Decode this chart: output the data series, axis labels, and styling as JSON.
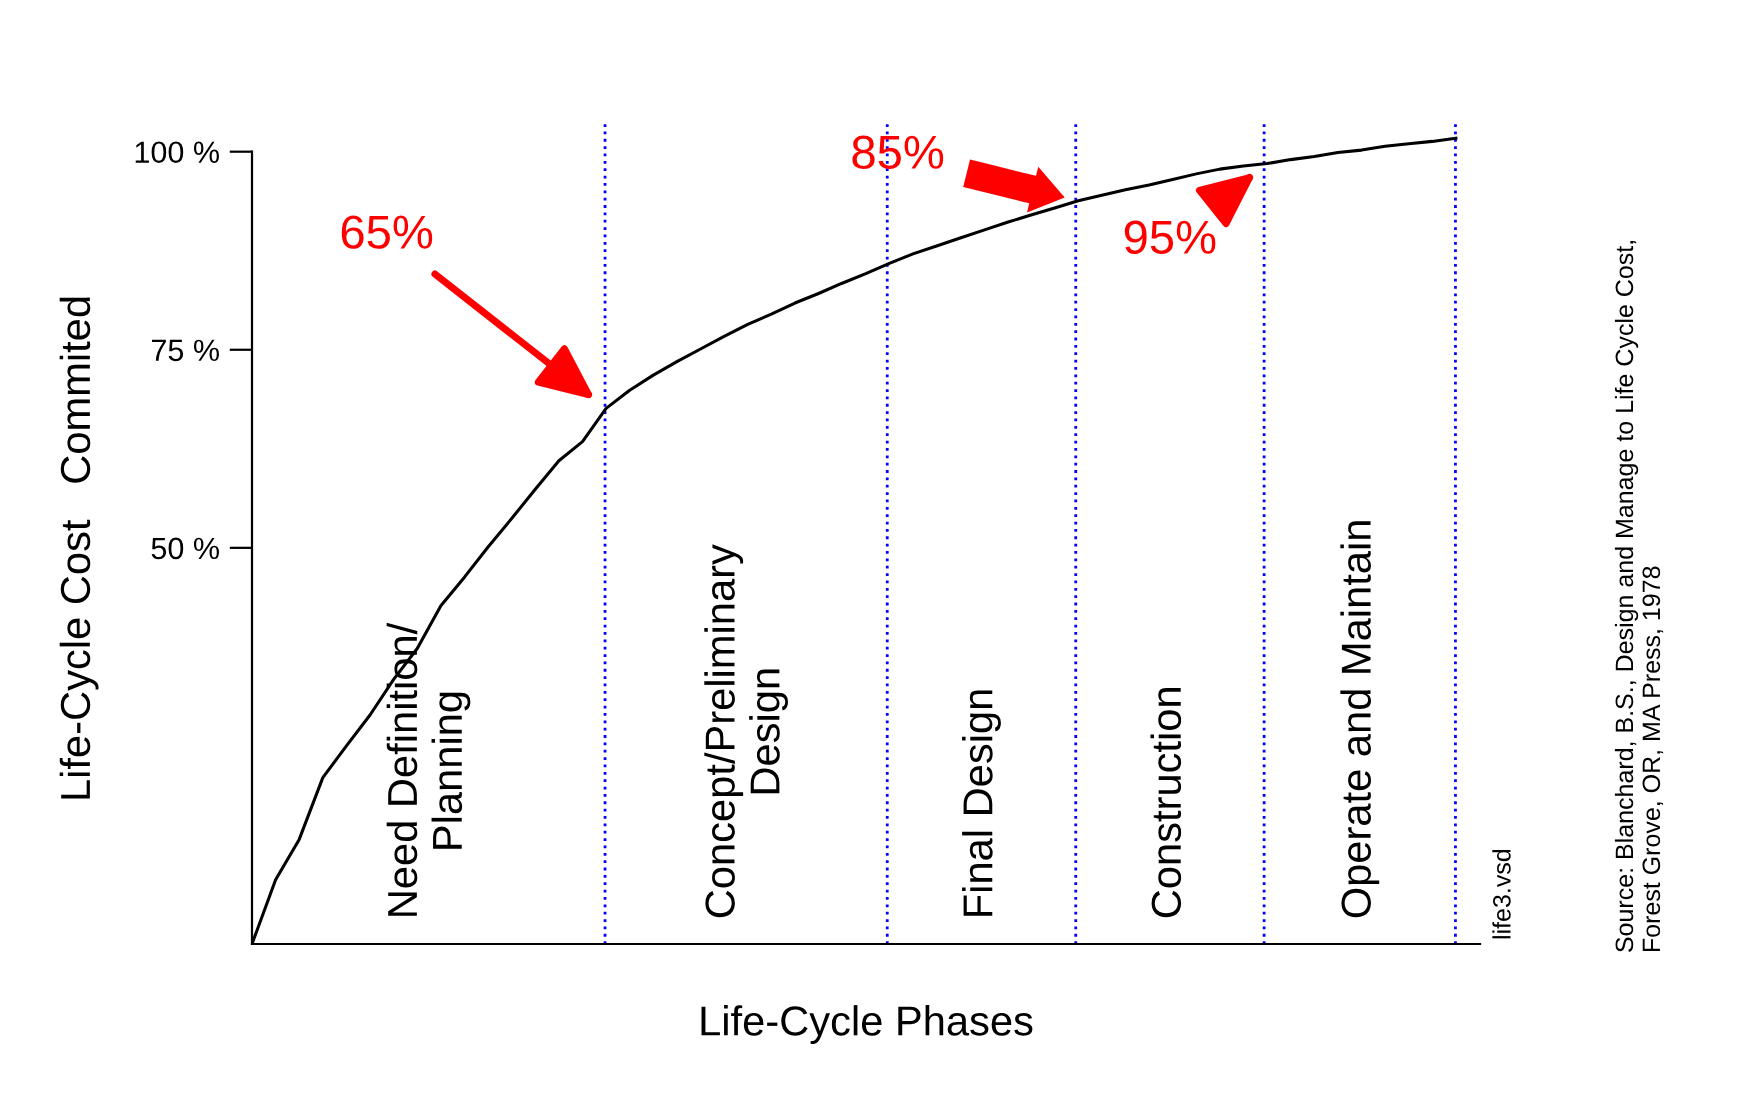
{
  "chart_data": {
    "type": "line",
    "xlabel": "Life-Cycle Phases",
    "ylabel": "Life-Cycle Cost   Commited",
    "categories": [
      null,
      null,
      null,
      null,
      null,
      null,
      null,
      null,
      null,
      null,
      null,
      null,
      null,
      null,
      null,
      null,
      null,
      null,
      null,
      null,
      null,
      null,
      null,
      null,
      null,
      null,
      null,
      null,
      null,
      null,
      null,
      null,
      null,
      null,
      null,
      null,
      null,
      null,
      null,
      null,
      null,
      null,
      null,
      null,
      null,
      null,
      null,
      null,
      null,
      null,
      null,
      null
    ],
    "series": [
      {
        "color": "#000000",
        "values": [
          0,
          8.1,
          13.2,
          21,
          25,
          28.9,
          33.4,
          37.3,
          42.7,
          46.3,
          50.1,
          53.7,
          57.4,
          61,
          63.4,
          67.6,
          69.9,
          71.8,
          73.5,
          75.1,
          76.7,
          78.2,
          79.5,
          80.9,
          82.1,
          83.4,
          84.6,
          85.9,
          87.1,
          88.1,
          89.1,
          90.1,
          91.1,
          92,
          92.9,
          93.8,
          94.5,
          95.2,
          95.8,
          96.5,
          97.2,
          97.8,
          98.2,
          98.5,
          99,
          99.4,
          99.9,
          100.2,
          100.7,
          101,
          101.3,
          101.7
        ]
      }
    ],
    "ylim": [
      0,
      104
    ],
    "yticks": [
      {
        "value": 50,
        "label": "50 %"
      },
      {
        "value": 75,
        "label": "75 %"
      },
      {
        "value": 100,
        "label": "100 %"
      }
    ],
    "tick_labels": "y",
    "grid": "x",
    "marker": "none",
    "line_style": "solid",
    "annotations": [
      "Need Definition/\nPlanning",
      "Concept/Preliminary\nDesign",
      "Final Design",
      "Construction",
      "Operate and Maintain",
      "65%",
      "85%",
      "95%",
      "life3.vsd",
      "Source: Blanchard, B.S., Design and Manage to Life Cycle Cost,\nForest Grove, OR, MA Press, 1978"
    ]
  }
}
